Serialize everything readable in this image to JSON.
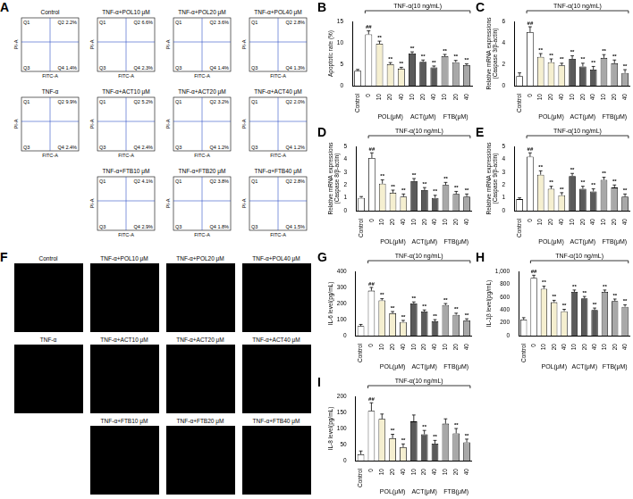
{
  "flow_cytometry": {
    "panel_label": "A",
    "x_label": "FITC-A",
    "y_label": "PI-A",
    "plots": [
      {
        "title": "Control",
        "labels": [
          "Q1",
          "Q2 2.2%",
          "Q3",
          "Q4 1.4%"
        ]
      },
      {
        "title": "TNF-α",
        "labels": [
          "Q1",
          "Q2 9.9%",
          "Q3",
          "Q4 2.4%"
        ]
      },
      {
        "title": "TNF-α+POL10 μM",
        "labels": [
          "Q1",
          "Q2 6.6%",
          "Q3",
          "Q4 2.3%"
        ]
      },
      {
        "title": "TNF-α+POL20 μM",
        "labels": [
          "Q1",
          "Q2 3.6%",
          "Q3",
          "Q4 1.4%"
        ]
      },
      {
        "title": "TNF-α+POL40 μM",
        "labels": [
          "Q1",
          "Q2 2.8%",
          "Q3",
          "Q4 1.3%"
        ]
      },
      {
        "title": "TNF-α+ACT10 μM",
        "labels": [
          "Q1",
          "Q2 5.2%",
          "Q3",
          "Q4 2.4%"
        ]
      },
      {
        "title": "TNF-α+ACT20 μM",
        "labels": [
          "Q1",
          "Q2 3.2%",
          "Q3",
          "Q4 1.2%"
        ]
      },
      {
        "title": "TNF-α+ACT40 μM",
        "labels": [
          "Q1",
          "Q2 2.0%",
          "Q3",
          "Q4 1.2%"
        ]
      },
      {
        "title": "TNF-α+FTB10 μM",
        "labels": [
          "Q1",
          "Q2 4.1%",
          "Q3",
          "Q4 2.9%"
        ]
      },
      {
        "title": "TNF-α+FTB20 μM",
        "labels": [
          "Q1",
          "Q2 3.8%",
          "Q3",
          "Q4 1.8%"
        ]
      },
      {
        "title": "TNF-α+FTB40 μM",
        "labels": [
          "Q1",
          "Q2 2.8%",
          "Q3",
          "Q4 1.5%"
        ]
      }
    ]
  },
  "fluorescence_images": {
    "panel_label": "F",
    "images": [
      {
        "title": "Control"
      },
      {
        "title": "TNF-α"
      },
      {
        "title": "TNF-α+POL10 μM"
      },
      {
        "title": "TNF-α+POL20 μM"
      },
      {
        "title": "TNF-α+POL40 μM"
      },
      {
        "title": "TNF-α+ACT10 μM"
      },
      {
        "title": "TNF-α+ACT20 μM"
      },
      {
        "title": "TNF-α+ACT40 μM"
      },
      {
        "title": "TNF-α+FTB10 μM"
      },
      {
        "title": "TNF-α+FTB20 μM"
      },
      {
        "title": "TNF-α+FTB40 μM"
      }
    ]
  },
  "chart_data": [
    {
      "type": "bar",
      "panel_label": "B",
      "title": "TNF-α(10 ng/mL)",
      "y_label": "Apoptotic rate (%)",
      "categories": [
        "Control",
        "0",
        "10",
        "20",
        "40",
        "10",
        "20",
        "40",
        "10",
        "20",
        "40"
      ],
      "category_groups": [
        null,
        null,
        "POL(μM)",
        "POL(μM)",
        "POL(μM)",
        "ACT(μM)",
        "ACT(μM)",
        "ACT(μM)",
        "FTB(μM)",
        "FTB(μM)",
        "FTB(μM)"
      ],
      "values": [
        3.5,
        12.0,
        9.8,
        5.0,
        4.0,
        7.5,
        5.6,
        4.3,
        6.9,
        5.5,
        4.8
      ],
      "errors": [
        0.3,
        0.8,
        0.6,
        0.4,
        0.3,
        0.4,
        0.4,
        0.3,
        0.4,
        0.4,
        0.3
      ],
      "colors": [
        "#ffffff",
        "#ffffff",
        "#f5efd0",
        "#f5efd0",
        "#f5efd0",
        "#5a5a5a",
        "#5a5a5a",
        "#5a5a5a",
        "#a8a8a8",
        "#a8a8a8",
        "#a8a8a8"
      ],
      "annotations": [
        null,
        "##",
        "**",
        "**",
        "**",
        "**",
        "**",
        "**",
        "**",
        "**",
        "**"
      ],
      "ylim": [
        0,
        15
      ],
      "yticks": [
        0,
        5,
        10,
        15
      ],
      "grid": false
    },
    {
      "type": "bar",
      "panel_label": "C",
      "title": "TNF-α(10 ng/mL)",
      "y_label": [
        "Relative mRNA expressions",
        "(Caspase 3/β-actin)"
      ],
      "categories": [
        "Control",
        "0",
        "10",
        "20",
        "40",
        "10",
        "20",
        "40",
        "10",
        "20",
        "40"
      ],
      "category_groups": [
        null,
        null,
        "POL(μM)",
        "POL(μM)",
        "POL(μM)",
        "ACT(μM)",
        "ACT(μM)",
        "ACT(μM)",
        "FTB(μM)",
        "FTB(μM)",
        "FTB(μM)"
      ],
      "values": [
        0.9,
        5.0,
        2.7,
        2.2,
        1.9,
        2.5,
        1.8,
        1.5,
        2.6,
        2.1,
        1.2
      ],
      "errors": [
        0.3,
        0.5,
        0.3,
        0.3,
        0.2,
        0.3,
        0.3,
        0.3,
        0.3,
        0.3,
        0.3
      ],
      "colors": [
        "#ffffff",
        "#ffffff",
        "#f5efd0",
        "#f5efd0",
        "#f5efd0",
        "#5a5a5a",
        "#5a5a5a",
        "#5a5a5a",
        "#a8a8a8",
        "#a8a8a8",
        "#a8a8a8"
      ],
      "annotations": [
        null,
        "##",
        "**",
        "**",
        "**",
        "**",
        "**",
        "**",
        "**",
        "**",
        "**"
      ],
      "ylim": [
        0,
        6
      ],
      "yticks": [
        0,
        2,
        4,
        6
      ],
      "grid": false
    },
    {
      "type": "bar",
      "panel_label": "D",
      "title": "TNF-α(10 ng/mL)",
      "y_label": [
        "Relative mRNA expressions",
        "(Caspase 8/β-actin)"
      ],
      "categories": [
        "Control",
        "0",
        "10",
        "20",
        "40",
        "10",
        "20",
        "40",
        "10",
        "20",
        "40"
      ],
      "category_groups": [
        null,
        null,
        "POL(μM)",
        "POL(μM)",
        "POL(μM)",
        "ACT(μM)",
        "ACT(μM)",
        "ACT(μM)",
        "FTB(μM)",
        "FTB(μM)",
        "FTB(μM)"
      ],
      "values": [
        1.0,
        4.1,
        2.1,
        1.4,
        1.1,
        2.3,
        1.6,
        1.0,
        2.0,
        1.3,
        1.1
      ],
      "errors": [
        0.1,
        0.4,
        0.3,
        0.2,
        0.2,
        0.2,
        0.2,
        0.2,
        0.2,
        0.2,
        0.2
      ],
      "colors": [
        "#ffffff",
        "#ffffff",
        "#f5efd0",
        "#f5efd0",
        "#f5efd0",
        "#5a5a5a",
        "#5a5a5a",
        "#5a5a5a",
        "#a8a8a8",
        "#a8a8a8",
        "#a8a8a8"
      ],
      "annotations": [
        null,
        "##",
        "**",
        "**",
        "**",
        "**",
        "**",
        "**",
        "**",
        "**",
        "**"
      ],
      "ylim": [
        0,
        5
      ],
      "yticks": [
        0,
        1,
        2,
        3,
        4,
        5
      ],
      "grid": false
    },
    {
      "type": "bar",
      "panel_label": "E",
      "title": "TNF-α(10 ng/mL)",
      "y_label": [
        "Relative mRNA expressions",
        "(Caspase 9/β-actin)"
      ],
      "categories": [
        "Control",
        "0",
        "10",
        "20",
        "40",
        "10",
        "20",
        "40",
        "10",
        "20",
        "40"
      ],
      "category_groups": [
        null,
        null,
        "POL(μM)",
        "POL(μM)",
        "POL(μM)",
        "ACT(μM)",
        "ACT(μM)",
        "ACT(μM)",
        "FTB(μM)",
        "FTB(μM)",
        "FTB(μM)"
      ],
      "values": [
        0.9,
        4.2,
        2.8,
        1.7,
        1.2,
        2.7,
        1.7,
        1.5,
        2.4,
        1.8,
        1.1
      ],
      "errors": [
        0.1,
        0.3,
        0.3,
        0.2,
        0.2,
        0.2,
        0.2,
        0.2,
        0.2,
        0.2,
        0.2
      ],
      "colors": [
        "#ffffff",
        "#ffffff",
        "#f5efd0",
        "#f5efd0",
        "#f5efd0",
        "#5a5a5a",
        "#5a5a5a",
        "#5a5a5a",
        "#a8a8a8",
        "#a8a8a8",
        "#a8a8a8"
      ],
      "annotations": [
        null,
        "##",
        "**",
        "**",
        "**",
        "**",
        "**",
        "**",
        "**",
        "**",
        "**"
      ],
      "ylim": [
        0,
        5
      ],
      "yticks": [
        0,
        1,
        2,
        3,
        4,
        5
      ],
      "grid": false
    },
    {
      "type": "bar",
      "panel_label": "G",
      "title": "TNF-α(10 ng/mL)",
      "y_label": "IL-6 level(pg/mL)",
      "categories": [
        "Control",
        "0",
        "10",
        "20",
        "40",
        "10",
        "20",
        "40",
        "10",
        "20",
        "40"
      ],
      "category_groups": [
        null,
        null,
        "POL(μM)",
        "POL(μM)",
        "POL(μM)",
        "ACT(μM)",
        "ACT(μM)",
        "ACT(μM)",
        "FTB(μM)",
        "FTB(μM)",
        "FTB(μM)"
      ],
      "values": [
        60,
        280,
        220,
        140,
        85,
        200,
        150,
        90,
        190,
        130,
        95
      ],
      "errors": [
        10,
        20,
        10,
        10,
        10,
        10,
        10,
        10,
        10,
        10,
        10
      ],
      "colors": [
        "#ffffff",
        "#ffffff",
        "#f5efd0",
        "#f5efd0",
        "#f5efd0",
        "#5a5a5a",
        "#5a5a5a",
        "#5a5a5a",
        "#a8a8a8",
        "#a8a8a8",
        "#a8a8a8"
      ],
      "annotations": [
        null,
        "##",
        "**",
        "**",
        "**",
        "**",
        "**",
        "**",
        "**",
        "**",
        "**"
      ],
      "ylim": [
        0,
        400
      ],
      "yticks": [
        0,
        100,
        200,
        300,
        400
      ],
      "grid": false
    },
    {
      "type": "bar",
      "panel_label": "H",
      "title": "TNF-α(10 ng/mL)",
      "y_label": "IL-1β level(pg/mL)",
      "categories": [
        "Control",
        "0",
        "10",
        "20",
        "40",
        "10",
        "20",
        "40",
        "10",
        "20",
        "40"
      ],
      "category_groups": [
        null,
        null,
        "POL(μM)",
        "POL(μM)",
        "POL(μM)",
        "ACT(μM)",
        "ACT(μM)",
        "ACT(μM)",
        "FTB(μM)",
        "FTB(μM)",
        "FTB(μM)"
      ],
      "values": [
        250,
        900,
        730,
        520,
        380,
        680,
        580,
        400,
        680,
        540,
        450
      ],
      "errors": [
        30,
        40,
        40,
        30,
        30,
        30,
        30,
        30,
        30,
        30,
        30
      ],
      "colors": [
        "#ffffff",
        "#ffffff",
        "#f5efd0",
        "#f5efd0",
        "#f5efd0",
        "#5a5a5a",
        "#5a5a5a",
        "#5a5a5a",
        "#a8a8a8",
        "#a8a8a8",
        "#a8a8a8"
      ],
      "annotations": [
        null,
        "##",
        "**",
        "**",
        "**",
        "**",
        "**",
        "**",
        "**",
        "**",
        "**"
      ],
      "ylim": [
        0,
        1000
      ],
      "yticks": [
        0,
        200,
        400,
        600,
        800,
        1000
      ],
      "grid": false
    },
    {
      "type": "bar",
      "panel_label": "I",
      "title": "TNF-α(10 ng/mL)",
      "y_label": "IL-8 level(pg/mL)",
      "categories": [
        "Control",
        "0",
        "10",
        "20",
        "40",
        "10",
        "20",
        "40",
        "10",
        "20",
        "40"
      ],
      "category_groups": [
        null,
        null,
        "POL(μM)",
        "POL(μM)",
        "POL(μM)",
        "ACT(μM)",
        "ACT(μM)",
        "ACT(μM)",
        "FTB(μM)",
        "FTB(μM)",
        "FTB(μM)"
      ],
      "values": [
        20,
        155,
        130,
        70,
        42,
        122,
        82,
        53,
        115,
        85,
        57
      ],
      "errors": [
        10,
        25,
        15,
        12,
        10,
        20,
        12,
        10,
        15,
        15,
        10
      ],
      "colors": [
        "#ffffff",
        "#ffffff",
        "#f5efd0",
        "#f5efd0",
        "#f5efd0",
        "#5a5a5a",
        "#5a5a5a",
        "#5a5a5a",
        "#a8a8a8",
        "#a8a8a8",
        "#a8a8a8"
      ],
      "annotations": [
        null,
        "##",
        null,
        "**",
        "**",
        null,
        "**",
        "**",
        null,
        "**",
        "**"
      ],
      "ylim": [
        0,
        200
      ],
      "yticks": [
        0,
        50,
        100,
        150,
        200
      ],
      "grid": false
    }
  ]
}
